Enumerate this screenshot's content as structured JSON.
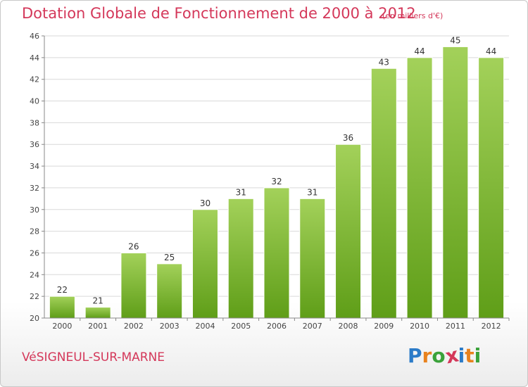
{
  "header": {
    "title": "Dotation Globale de Fonctionnement de 2000 à 2012",
    "unit": "(en milliers d'€)"
  },
  "footer": {
    "commune": "VéSIGNEUL-SUR-MARNE",
    "logo": [
      "P",
      "r",
      "o",
      "x",
      "i",
      "t",
      "i"
    ],
    "logo_colors": [
      "#2b7bc8",
      "#e8821e",
      "#3aa23a",
      "#d4385a",
      "#2b7bc8",
      "#e8821e",
      "#3aa23a"
    ]
  },
  "chart_data": {
    "type": "bar",
    "title": "Dotation Globale de Fonctionnement de 2000 à 2012",
    "xlabel": "",
    "ylabel": "",
    "categories": [
      "2000",
      "2001",
      "2002",
      "2003",
      "2004",
      "2005",
      "2006",
      "2007",
      "2008",
      "2009",
      "2010",
      "2011",
      "2012"
    ],
    "values": [
      22,
      21,
      26,
      25,
      30,
      31,
      32,
      31,
      36,
      43,
      44,
      45,
      44
    ],
    "ylim": [
      20,
      46
    ],
    "yticks": [
      20,
      22,
      24,
      26,
      28,
      30,
      32,
      34,
      36,
      38,
      40,
      42,
      44,
      46
    ],
    "grid": true,
    "bar_color_top": "#a3d15a",
    "bar_color_bottom": "#5f9e18"
  }
}
